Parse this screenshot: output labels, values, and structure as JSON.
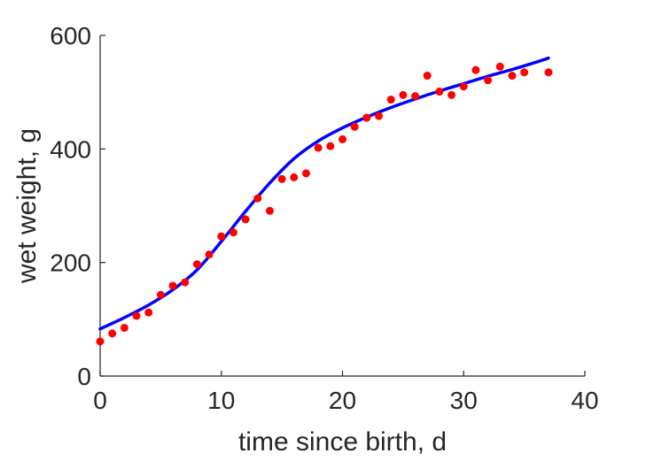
{
  "chart_data": {
    "type": "scatter",
    "title": "",
    "xlabel": "time since birth, d",
    "ylabel": "wet weight, g",
    "xlim": [
      0,
      40
    ],
    "ylim": [
      0,
      600
    ],
    "xticks": [
      "0",
      "10",
      "20",
      "30",
      "40"
    ],
    "yticks": [
      "0",
      "200",
      "400",
      "600"
    ],
    "grid": false,
    "legend": "none",
    "colors": {
      "points": "#ff0000",
      "fit": "#0000ff",
      "axis": "#262626"
    },
    "series": [
      {
        "type": "scatter",
        "x": [
          0,
          1,
          2,
          3,
          4,
          5,
          6,
          7,
          8,
          9,
          10,
          11,
          12,
          13,
          14,
          15,
          16,
          17,
          18,
          19,
          20,
          21,
          22,
          23,
          24,
          25,
          26,
          27,
          28,
          29,
          30,
          31,
          32,
          33,
          34,
          35,
          37
        ],
        "y": [
          61,
          75,
          85,
          106,
          112,
          143,
          159,
          165,
          197,
          214,
          246,
          253,
          276,
          313,
          291,
          347,
          350,
          357,
          402,
          405,
          417,
          439,
          455,
          458,
          487,
          495,
          493,
          529,
          501,
          495,
          510,
          539,
          521,
          545,
          529,
          535,
          535
        ]
      },
      {
        "type": "line",
        "x": [
          0,
          2,
          4,
          6,
          8,
          10,
          12,
          14,
          16,
          18,
          20,
          22,
          24,
          26,
          28,
          30,
          32,
          34,
          36,
          37
        ],
        "y": [
          83,
          103,
          125,
          152,
          187,
          237,
          290,
          340,
          383,
          414,
          437,
          456,
          473,
          488,
          502,
          515,
          528,
          540,
          553,
          560
        ]
      }
    ]
  }
}
